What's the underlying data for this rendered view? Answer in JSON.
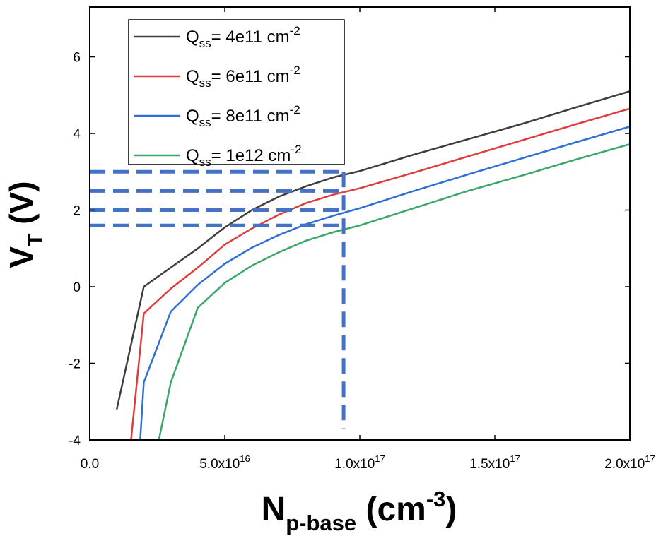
{
  "chart_data": {
    "type": "line",
    "xlabel": {
      "main": "N",
      "sub": "p-base",
      "rest": " (cm",
      "sup": "-3",
      "close": ")"
    },
    "ylabel": {
      "main": "V",
      "sub": "T",
      "rest": " (V)"
    },
    "xlim": [
      0,
      2e+17
    ],
    "ylim": [
      -4,
      7.3
    ],
    "x_ticks": [
      {
        "value": 0,
        "label": "0.0",
        "sup": ""
      },
      {
        "value": 5e+16,
        "label": "5.0x10",
        "sup": "16"
      },
      {
        "value": 1e+17,
        "label": "1.0x10",
        "sup": "17"
      },
      {
        "value": 1.5e+17,
        "label": "1.5x10",
        "sup": "17"
      },
      {
        "value": 2e+17,
        "label": "2.0x10",
        "sup": "17"
      }
    ],
    "y_ticks": [
      {
        "value": -4,
        "label": "-4"
      },
      {
        "value": -2,
        "label": "-2"
      },
      {
        "value": 0,
        "label": "0"
      },
      {
        "value": 2,
        "label": "2"
      },
      {
        "value": 4,
        "label": "4"
      },
      {
        "value": 6,
        "label": "6"
      }
    ],
    "legend_position": "top-left",
    "series": [
      {
        "name": "Q",
        "name_sub": "ss",
        "name_rest": "= 4e11 cm",
        "name_sup": "-2",
        "color": "#3d3d3d",
        "x": [
          1e+16,
          2e+16,
          3e+16,
          4e+16,
          5e+16,
          6e+16,
          7e+16,
          8e+16,
          9e+16,
          1e+17,
          1.2e+17,
          1.4e+17,
          1.6e+17,
          1.8e+17,
          2e+17
        ],
        "y": [
          -3.2,
          0.0,
          0.5,
          1.0,
          1.55,
          2.0,
          2.35,
          2.62,
          2.85,
          3.02,
          3.45,
          3.85,
          4.25,
          4.68,
          5.1
        ]
      },
      {
        "name": "Q",
        "name_sub": "ss",
        "name_rest": "= 6e11 cm",
        "name_sup": "-2",
        "color": "#e03c3c",
        "x": [
          1.5e+16,
          2e+16,
          3e+16,
          4e+16,
          5e+16,
          6e+16,
          7e+16,
          8e+16,
          9e+16,
          1e+17,
          1.2e+17,
          1.4e+17,
          1.6e+17,
          1.8e+17,
          2e+17
        ],
        "y": [
          -4.2,
          -0.7,
          -0.05,
          0.5,
          1.1,
          1.52,
          1.88,
          2.18,
          2.4,
          2.57,
          2.98,
          3.4,
          3.82,
          4.24,
          4.65
        ]
      },
      {
        "name": "Q",
        "name_sub": "ss",
        "name_rest": "= 8e11 cm",
        "name_sup": "-2",
        "color": "#2e6fd6",
        "x": [
          1.85e+16,
          2e+16,
          3e+16,
          4e+16,
          5e+16,
          6e+16,
          7e+16,
          8e+16,
          9e+16,
          1e+17,
          1.2e+17,
          1.4e+17,
          1.6e+17,
          1.8e+17,
          2e+17
        ],
        "y": [
          -4.2,
          -2.5,
          -0.65,
          0.05,
          0.6,
          1.02,
          1.35,
          1.63,
          1.85,
          2.05,
          2.5,
          2.93,
          3.35,
          3.77,
          4.18
        ]
      },
      {
        "name": "Q",
        "name_sub": "ss",
        "name_rest": "= 1e12 cm",
        "name_sup": "-2",
        "color": "#3aa66a",
        "x": [
          2.5e+16,
          3e+16,
          4e+16,
          5e+16,
          6e+16,
          7e+16,
          8e+16,
          9e+16,
          1e+17,
          1.2e+17,
          1.4e+17,
          1.6e+17,
          1.8e+17,
          2e+17
        ],
        "y": [
          -4.2,
          -2.5,
          -0.55,
          0.1,
          0.55,
          0.9,
          1.2,
          1.42,
          1.6,
          2.05,
          2.5,
          2.9,
          3.32,
          3.72
        ]
      }
    ],
    "reference_lines": {
      "color": "#4472c4",
      "vertical_x": 9.4e+16,
      "vertical_ymin": -3.7,
      "horizontal_y": [
        3.0,
        2.5,
        2.0,
        1.6
      ],
      "horizontal_xmin": 0
    }
  }
}
